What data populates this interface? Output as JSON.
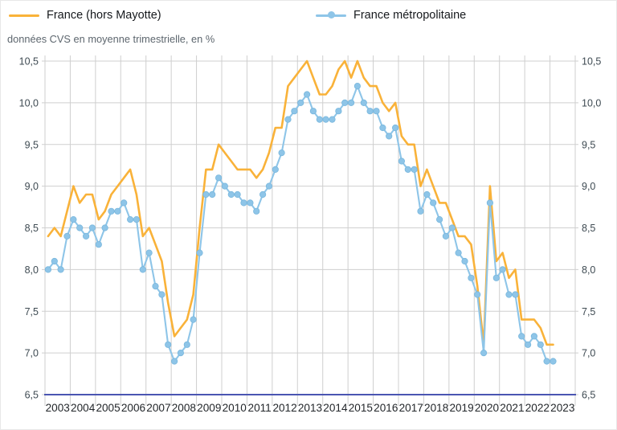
{
  "subtitle": "données CVS en moyenne trimestrielle, en %",
  "chart_data": {
    "type": "line",
    "title": "",
    "subtitle": "données CVS en moyenne trimestrielle, en %",
    "x_unit": "quarter",
    "x_start": "2003-T1",
    "x_end": "2023-T1",
    "categories": [
      "2003",
      "2004",
      "2005",
      "2006",
      "2007",
      "2008",
      "2009",
      "2010",
      "2011",
      "2012",
      "2013",
      "2014",
      "2015",
      "2016",
      "2017",
      "2018",
      "2019",
      "2020",
      "2021",
      "2022",
      "2023"
    ],
    "y_ticks": [
      "6,5",
      "7,0",
      "7,5",
      "8,0",
      "8,5",
      "9,0",
      "9,5",
      "10,0",
      "10,5"
    ],
    "ylim": [
      6.5,
      10.5
    ],
    "grid": true,
    "legend_position": "top",
    "axis_color": "#4A55B2",
    "grid_color": "#cfcfcf",
    "series": [
      {
        "name": "France (hors Mayotte)",
        "color": "#F9B239",
        "marker": "none",
        "values": [
          8.4,
          8.5,
          8.4,
          8.7,
          9.0,
          8.8,
          8.9,
          8.9,
          8.6,
          8.7,
          8.9,
          9.0,
          9.1,
          9.2,
          8.9,
          8.4,
          8.5,
          8.3,
          8.1,
          7.6,
          7.2,
          7.3,
          7.4,
          7.7,
          8.5,
          9.2,
          9.2,
          9.5,
          9.4,
          9.3,
          9.2,
          9.2,
          9.2,
          9.1,
          9.2,
          9.4,
          9.7,
          9.7,
          10.2,
          10.3,
          10.4,
          10.5,
          10.3,
          10.1,
          10.1,
          10.2,
          10.4,
          10.5,
          10.3,
          10.5,
          10.3,
          10.2,
          10.2,
          10.0,
          9.9,
          10.0,
          9.6,
          9.5,
          9.5,
          9.0,
          9.2,
          9.0,
          8.8,
          8.8,
          8.6,
          8.4,
          8.4,
          8.3,
          7.8,
          7.1,
          9.0,
          8.1,
          8.2,
          7.9,
          8.0,
          7.4,
          7.4,
          7.4,
          7.3,
          7.1,
          7.1
        ]
      },
      {
        "name": "France métropolitaine",
        "color": "#8EC5E8",
        "marker": "circle",
        "values": [
          8.0,
          8.1,
          8.0,
          8.4,
          8.6,
          8.5,
          8.4,
          8.5,
          8.3,
          8.5,
          8.7,
          8.7,
          8.8,
          8.6,
          8.6,
          8.0,
          8.2,
          7.8,
          7.7,
          7.1,
          6.9,
          7.0,
          7.1,
          7.4,
          8.2,
          8.9,
          8.9,
          9.1,
          9.0,
          8.9,
          8.9,
          8.8,
          8.8,
          8.7,
          8.9,
          9.0,
          9.2,
          9.4,
          9.8,
          9.9,
          10.0,
          10.1,
          9.9,
          9.8,
          9.8,
          9.8,
          9.9,
          10.0,
          10.0,
          10.2,
          10.0,
          9.9,
          9.9,
          9.7,
          9.6,
          9.7,
          9.3,
          9.2,
          9.2,
          8.7,
          8.9,
          8.8,
          8.6,
          8.4,
          8.5,
          8.2,
          8.1,
          7.9,
          7.7,
          7.0,
          8.8,
          7.9,
          8.0,
          7.7,
          7.7,
          7.2,
          7.1,
          7.2,
          7.1,
          6.9,
          6.9
        ]
      }
    ]
  }
}
